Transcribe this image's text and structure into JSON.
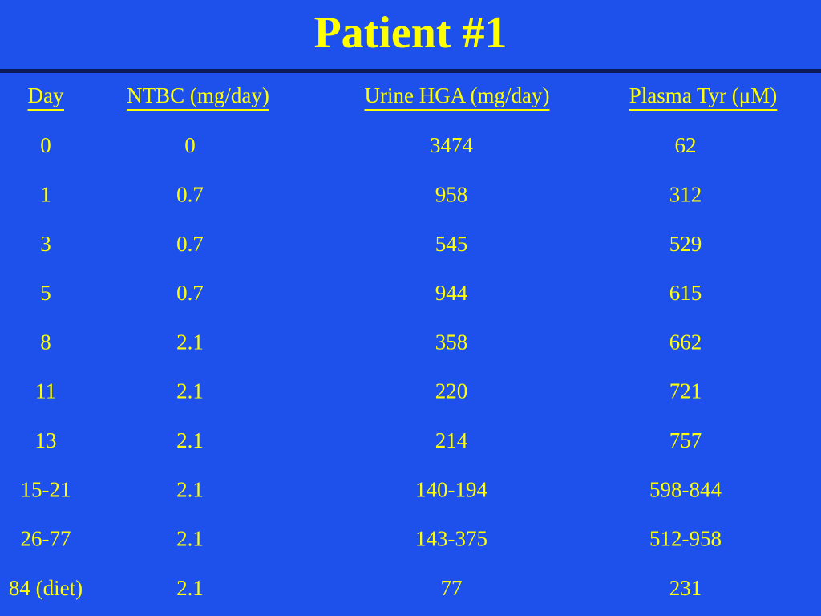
{
  "title": "Patient #1",
  "table": {
    "header": [
      "Day",
      "NTBC (mg/day)",
      "Urine HGA (mg/day)",
      "Plasma Tyr (μM)"
    ],
    "rows": [
      [
        "0",
        "0",
        "3474",
        "62"
      ],
      [
        "1",
        "0.7",
        "958",
        "312"
      ],
      [
        "3",
        "0.7",
        "545",
        "529"
      ],
      [
        "5",
        "0.7",
        "944",
        "615"
      ],
      [
        "8",
        "2.1",
        "358",
        "662"
      ],
      [
        "11",
        "2.1",
        "220",
        "721"
      ],
      [
        "13",
        "2.1",
        "214",
        "757"
      ],
      [
        "15-21",
        "2.1",
        "140-194",
        "598-844"
      ],
      [
        "26-77",
        "2.1",
        "143-375",
        "512-958"
      ],
      [
        "84 (diet)",
        "2.1",
        "77",
        "231"
      ]
    ]
  }
}
